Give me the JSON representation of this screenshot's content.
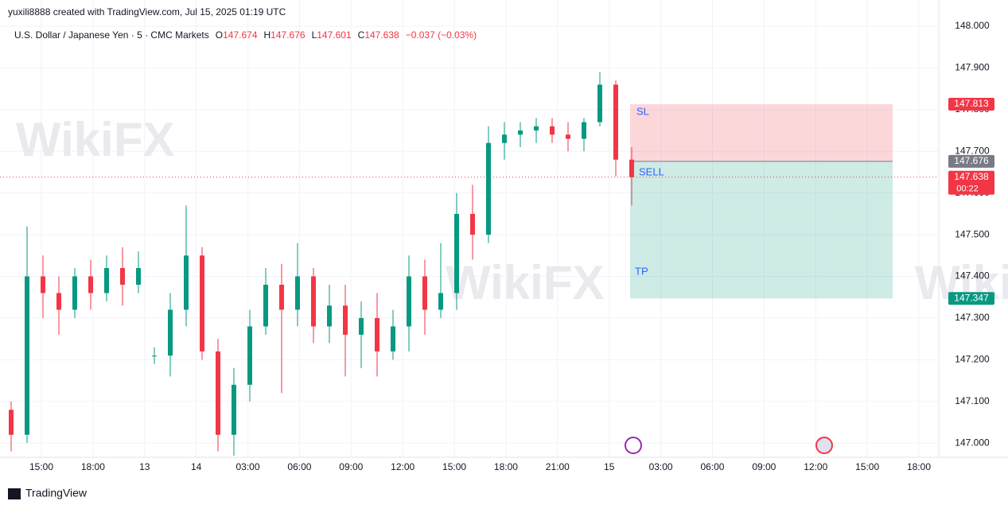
{
  "header": {
    "credit": "yuxili8888 created with TradingView.com, Jul 15, 2025 01:19 UTC"
  },
  "watermark": "WikiFX",
  "chart_data": {
    "type": "candlestick",
    "title": "U.S. Dollar / Japanese Yen · 5 · CMC Markets",
    "ohlc": {
      "labels": [
        "O",
        "H",
        "L",
        "C"
      ],
      "values": [
        "147.674",
        "147.676",
        "147.601",
        "147.638"
      ],
      "change": "−0.037 (−0.03%)"
    },
    "categories": [
      "15:00",
      "18:00",
      "13",
      "14",
      "03:00",
      "06:00",
      "09:00",
      "12:00",
      "15:00",
      "18:00",
      "21:00",
      "15",
      "03:00",
      "06:00",
      "09:00",
      "12:00",
      "15:00",
      "18:00"
    ],
    "open": [
      147.08,
      147.02,
      147.4,
      147.36,
      147.32,
      147.4,
      147.36,
      147.42,
      147.38,
      147.21,
      147.21,
      147.32,
      147.45,
      147.22,
      147.02,
      147.14,
      147.28,
      147.38,
      147.32,
      147.4,
      147.28,
      147.33,
      147.26,
      147.3,
      147.22,
      147.28,
      147.4,
      147.32,
      147.36,
      147.55,
      147.5,
      147.72,
      147.74,
      147.75,
      147.76,
      147.74,
      147.73,
      147.77,
      147.86,
      147.68
    ],
    "high": [
      147.1,
      147.52,
      147.45,
      147.4,
      147.42,
      147.44,
      147.45,
      147.47,
      147.46,
      147.23,
      147.36,
      147.57,
      147.47,
      147.25,
      147.18,
      147.32,
      147.42,
      147.43,
      147.48,
      147.42,
      147.38,
      147.38,
      147.34,
      147.36,
      147.32,
      147.45,
      147.44,
      147.48,
      147.6,
      147.62,
      147.76,
      147.77,
      147.77,
      147.78,
      147.78,
      147.77,
      147.78,
      147.89,
      147.87,
      147.71
    ],
    "low": [
      146.98,
      147.0,
      147.3,
      147.26,
      147.3,
      147.32,
      147.34,
      147.33,
      147.36,
      147.19,
      147.16,
      147.28,
      147.2,
      146.98,
      146.97,
      147.1,
      147.26,
      147.12,
      147.28,
      147.24,
      147.24,
      147.16,
      147.18,
      147.16,
      147.2,
      147.22,
      147.26,
      147.3,
      147.32,
      147.44,
      147.48,
      147.68,
      147.71,
      147.72,
      147.72,
      147.7,
      147.7,
      147.76,
      147.64,
      147.57
    ],
    "close": [
      147.02,
      147.4,
      147.36,
      147.32,
      147.4,
      147.36,
      147.42,
      147.38,
      147.42,
      147.21,
      147.32,
      147.45,
      147.22,
      147.02,
      147.14,
      147.28,
      147.38,
      147.32,
      147.4,
      147.28,
      147.33,
      147.26,
      147.3,
      147.22,
      147.28,
      147.4,
      147.32,
      147.36,
      147.55,
      147.5,
      147.72,
      147.74,
      147.75,
      147.76,
      147.74,
      147.73,
      147.77,
      147.86,
      147.68,
      147.638
    ],
    "up_color": "#089981",
    "down_color": "#f23645",
    "ylim": [
      146.966,
      148.063
    ],
    "yticks": [
      {
        "value": 147.0,
        "label": "147.000"
      },
      {
        "value": 147.1,
        "label": "147.100"
      },
      {
        "value": 147.2,
        "label": "147.200"
      },
      {
        "value": 147.3,
        "label": "147.300"
      },
      {
        "value": 147.4,
        "label": "147.400"
      },
      {
        "value": 147.5,
        "label": "147.500"
      },
      {
        "value": 147.6,
        "label": "147.600"
      },
      {
        "value": 147.7,
        "label": "147.700"
      },
      {
        "value": 147.8,
        "label": "147.800"
      },
      {
        "value": 147.9,
        "label": "147.900"
      },
      {
        "value": 148.0,
        "label": "148.000"
      }
    ],
    "grid": true,
    "position": {
      "side": "SELL",
      "stop_label": "SL",
      "target_label": "TP",
      "stop": 147.813,
      "entry": 147.676,
      "target": 147.347
    },
    "last_price": 147.638,
    "countdown": "00:22"
  },
  "footer": {
    "brand": "TradingView"
  }
}
